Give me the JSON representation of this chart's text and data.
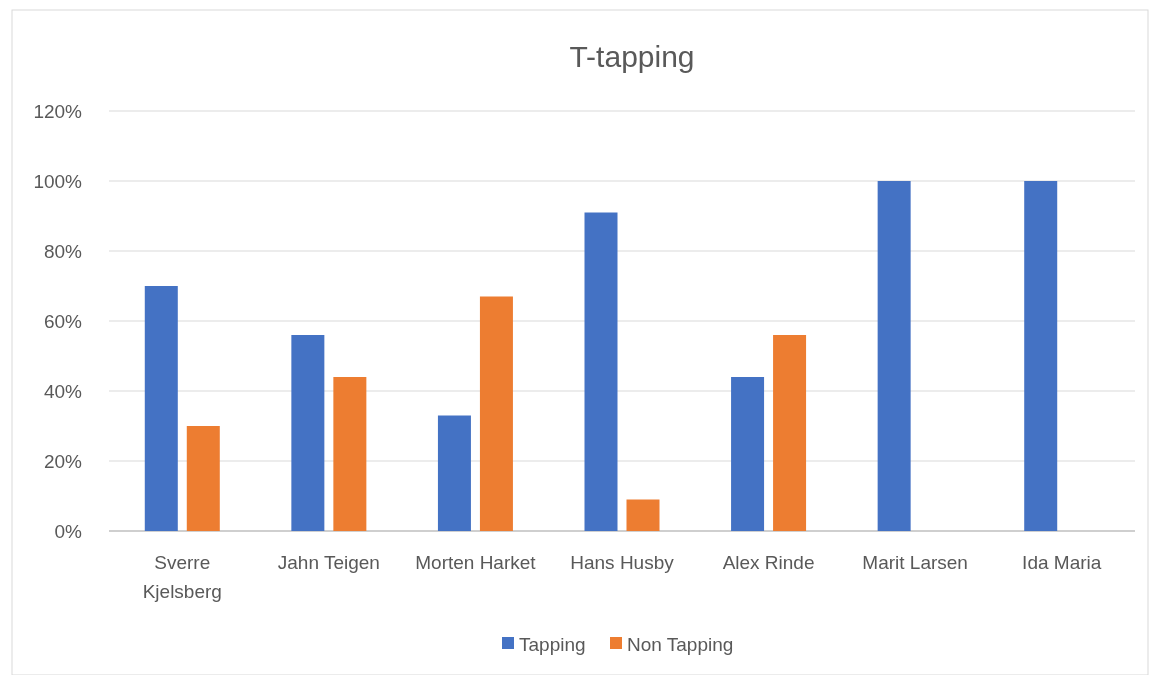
{
  "chart_data": {
    "type": "bar",
    "title": "T-tapping",
    "categories": [
      "Sverre Kjelsberg",
      "Jahn Teigen",
      "Morten Harket",
      "Hans Husby",
      "Alex Rinde",
      "Marit Larsen",
      "Ida Maria"
    ],
    "series": [
      {
        "name": "Tapping",
        "color": "#4472c4",
        "values": [
          70,
          56,
          33,
          91,
          44,
          100,
          100
        ]
      },
      {
        "name": "Non Tapping",
        "color": "#ed7d31",
        "values": [
          30,
          44,
          67,
          9,
          56,
          0,
          0
        ]
      }
    ],
    "ylim": [
      0,
      120
    ],
    "yticks": [
      {
        "value": 0,
        "label": "0%"
      },
      {
        "value": 20,
        "label": "20%"
      },
      {
        "value": 40,
        "label": "40%"
      },
      {
        "value": 60,
        "label": "60%"
      },
      {
        "value": 80,
        "label": "80%"
      },
      {
        "value": 100,
        "label": "100%"
      },
      {
        "value": 120,
        "label": "120%"
      }
    ],
    "grid": "y",
    "legend": "bottom"
  }
}
